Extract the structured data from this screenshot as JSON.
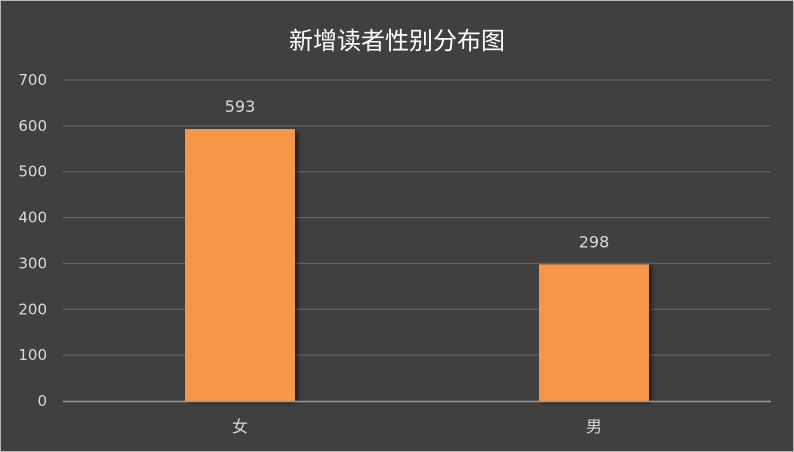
{
  "chart_data": {
    "type": "bar",
    "title": "新增读者性别分布图",
    "categories": [
      "女",
      "男"
    ],
    "values": [
      593,
      298
    ],
    "data_labels": [
      "593",
      "298"
    ],
    "ylim": [
      0,
      700
    ],
    "y_ticks": [
      "0",
      "100",
      "200",
      "300",
      "400",
      "500",
      "600",
      "700"
    ],
    "y_tick_values": [
      0,
      100,
      200,
      300,
      400,
      500,
      600,
      700
    ],
    "grid": true,
    "legend": "none",
    "colors": {
      "background": "#404040",
      "bar": "#f79646",
      "gridline": "#6b6b6b",
      "axis_line": "#9a9a9a",
      "text": "#d9d9d9",
      "title": "#ffffff"
    }
  }
}
